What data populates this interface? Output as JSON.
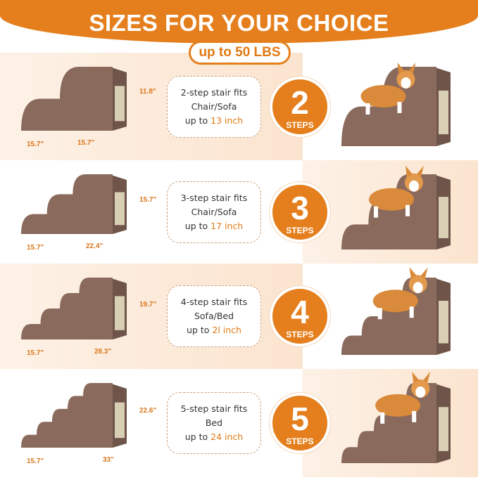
{
  "header": {
    "title": "SIZES FOR YOUR CHOICE",
    "weight_badge": "up to 50 LBS"
  },
  "colors": {
    "accent": "#e57f1d",
    "stair_brown": "#8a6a5c",
    "peach": "#fbe4cf"
  },
  "rows": [
    {
      "steps": 2,
      "number": "2",
      "steps_label": "STEPS",
      "line1": "2-step stair fits",
      "line2": "Chair/Sofa",
      "line3_prefix": "up to ",
      "line3_value": "13 inch",
      "height": "11.8\"",
      "depth": "15.7\"",
      "length": "15.7\""
    },
    {
      "steps": 3,
      "number": "3",
      "steps_label": "STEPS",
      "line1": "3-step stair fits",
      "line2": "Chair/Sofa",
      "line3_prefix": "up to ",
      "line3_value": "17 inch",
      "height": "15.7\"",
      "depth": "15.7\"",
      "length": "22.4\""
    },
    {
      "steps": 4,
      "number": "4",
      "steps_label": "STEPS",
      "line1": "4-step stair fits",
      "line2": "Sofa/Bed",
      "line3_prefix": "up to ",
      "line3_value": "2l inch",
      "height": "19.7\"",
      "depth": "15.7\"",
      "length": "28.3\""
    },
    {
      "steps": 5,
      "number": "5",
      "steps_label": "STEPS",
      "line1": "5-step stair fits",
      "line2": "Bed",
      "line3_prefix": "up to ",
      "line3_value": "24 inch",
      "height": "22.6\"",
      "depth": "15.7\"",
      "length": "33\""
    }
  ]
}
